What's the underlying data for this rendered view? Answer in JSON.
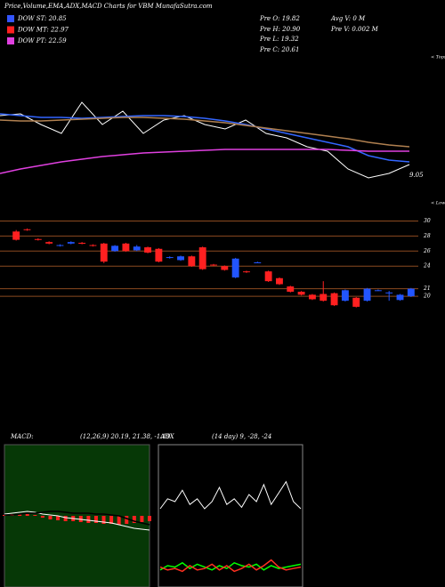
{
  "header": {
    "title": "Price,Volume,EMA,ADX,MACD Charts for VBM MunafaSutra.com",
    "legend": [
      {
        "label": "DOW ST: 20.85",
        "color": "#3355ff"
      },
      {
        "label": "DOW MT: 22.97",
        "color": "#ff2020"
      },
      {
        "label": "DOW PT: 22.59",
        "color": "#e040e0"
      }
    ],
    "stats_left": [
      "Pre O: 19.82",
      "Pre H: 20.90",
      "Pre L: 19.32",
      "Pre C: 20.61"
    ],
    "stats_right": [
      "Avg V: 0 M",
      "Pre V: 0.002 M"
    ]
  },
  "chart_data": [
    {
      "type": "line",
      "ylim": [
        0,
        100
      ],
      "annotations": {
        "last": "9.05",
        "tops": "< Tops",
        "lows": "< Lows"
      },
      "series": [
        {
          "name": null,
          "color": "#ffffff",
          "values": [
            80,
            82,
            70,
            60,
            95,
            70,
            85,
            60,
            75,
            80,
            70,
            65,
            75,
            60,
            55,
            45,
            40,
            20,
            10,
            15,
            25
          ]
        },
        {
          "name": null,
          "color": "#3366ff",
          "values": [
            82,
            80,
            78,
            78,
            77,
            78,
            79,
            80,
            80,
            79,
            77,
            74,
            70,
            65,
            60,
            55,
            50,
            45,
            35,
            30,
            28
          ]
        },
        {
          "name": null,
          "color": "#b08050",
          "values": [
            75,
            74,
            74,
            75,
            76,
            77,
            78,
            78,
            77,
            76,
            74,
            72,
            69,
            66,
            63,
            60,
            57,
            54,
            50,
            47,
            45
          ]
        },
        {
          "name": null,
          "color": "#e040e0",
          "values": [
            15,
            20,
            24,
            28,
            31,
            34,
            36,
            38,
            39,
            40,
            41,
            42,
            42,
            42,
            42,
            42,
            42,
            41,
            40,
            40,
            40
          ]
        }
      ]
    },
    {
      "type": "candlestick",
      "ylim": [
        18,
        31
      ],
      "yticks": [
        30,
        28,
        26,
        24,
        21,
        20
      ],
      "up_color": "#2255ff",
      "down_color": "#ff2020",
      "grid_color": "#8b4a20",
      "candles": [
        {
          "open": 28.6,
          "high": 28.8,
          "low": 27.4,
          "close": 27.5
        },
        {
          "open": 28.9,
          "high": 29.0,
          "low": 28.7,
          "close": 28.8
        },
        {
          "open": 27.6,
          "high": 27.7,
          "low": 27.4,
          "close": 27.5
        },
        {
          "open": 27.2,
          "high": 27.3,
          "low": 26.9,
          "close": 27.0
        },
        {
          "open": 26.7,
          "high": 26.9,
          "low": 26.6,
          "close": 26.8
        },
        {
          "open": 27.0,
          "high": 27.3,
          "low": 26.9,
          "close": 27.2
        },
        {
          "open": 27.1,
          "high": 27.2,
          "low": 26.9,
          "close": 27.0
        },
        {
          "open": 26.8,
          "high": 26.9,
          "low": 26.6,
          "close": 26.7
        },
        {
          "open": 27.0,
          "high": 27.1,
          "low": 24.4,
          "close": 24.6
        },
        {
          "open": 26.0,
          "high": 26.8,
          "low": 25.9,
          "close": 26.7
        },
        {
          "open": 27.0,
          "high": 27.1,
          "low": 25.9,
          "close": 26.0
        },
        {
          "open": 26.1,
          "high": 26.8,
          "low": 26.0,
          "close": 26.6
        },
        {
          "open": 26.5,
          "high": 26.6,
          "low": 25.7,
          "close": 25.8
        },
        {
          "open": 26.3,
          "high": 26.4,
          "low": 24.5,
          "close": 24.6
        },
        {
          "open": 25.1,
          "high": 25.3,
          "low": 25.0,
          "close": 25.2
        },
        {
          "open": 24.8,
          "high": 25.4,
          "low": 24.7,
          "close": 25.3
        },
        {
          "open": 25.3,
          "high": 25.4,
          "low": 23.9,
          "close": 24.0
        },
        {
          "open": 26.5,
          "high": 26.6,
          "low": 23.5,
          "close": 23.6
        },
        {
          "open": 24.2,
          "high": 24.3,
          "low": 24.0,
          "close": 24.1
        },
        {
          "open": 24.0,
          "high": 24.1,
          "low": 23.4,
          "close": 23.5
        },
        {
          "open": 22.5,
          "high": 25.1,
          "low": 22.4,
          "close": 25.0
        },
        {
          "open": 23.3,
          "high": 23.4,
          "low": 23.1,
          "close": 23.2
        },
        {
          "open": 24.5,
          "high": 24.6,
          "low": 24.4,
          "close": 24.5
        },
        {
          "open": 23.3,
          "high": 23.4,
          "low": 21.9,
          "close": 22.0
        },
        {
          "open": 22.4,
          "high": 22.5,
          "low": 21.5,
          "close": 21.6
        },
        {
          "open": 21.3,
          "high": 21.4,
          "low": 20.5,
          "close": 20.6
        },
        {
          "open": 20.6,
          "high": 20.7,
          "low": 20.1,
          "close": 20.2
        },
        {
          "open": 20.2,
          "high": 20.3,
          "low": 19.5,
          "close": 19.6
        },
        {
          "open": 20.3,
          "high": 22.0,
          "low": 19.3,
          "close": 19.4
        },
        {
          "open": 20.4,
          "high": 20.5,
          "low": 18.7,
          "close": 18.8
        },
        {
          "open": 19.4,
          "high": 20.9,
          "low": 19.3,
          "close": 20.8
        },
        {
          "open": 19.8,
          "high": 19.9,
          "low": 18.5,
          "close": 18.6
        },
        {
          "open": 19.4,
          "high": 21.1,
          "low": 19.3,
          "close": 21.0
        },
        {
          "open": 20.8,
          "high": 20.9,
          "low": 20.7,
          "close": 20.8
        },
        {
          "open": 20.5,
          "high": 20.7,
          "low": 19.4,
          "close": 20.5
        },
        {
          "open": 19.5,
          "high": 20.3,
          "low": 19.4,
          "close": 20.2
        },
        {
          "open": 20.0,
          "high": 21.1,
          "low": 19.9,
          "close": 21.0
        }
      ]
    },
    {
      "type": "macd",
      "title": "MACD:",
      "subtitle": "(12,26,9) 20.19, 21.38, -1.19",
      "background": "#063806",
      "ylim": [
        -4,
        4
      ],
      "histogram_color": "#ff2020",
      "histogram": [
        0.05,
        0.1,
        0.08,
        0.1,
        0.05,
        -0.1,
        -0.2,
        -0.25,
        -0.3,
        -0.3,
        -0.35,
        -0.4,
        -0.4,
        -0.45,
        -0.45,
        -0.5,
        -0.45,
        -0.4,
        -0.35,
        -0.3
      ],
      "series": [
        {
          "name": null,
          "color": "#ffffff",
          "values": [
            0.1,
            0.15,
            0.2,
            0.25,
            0.2,
            0.1,
            0.05,
            0.0,
            -0.1,
            -0.15,
            -0.2,
            -0.25,
            -0.3,
            -0.35,
            -0.4,
            -0.5,
            -0.6,
            -0.7,
            -0.75,
            -0.8
          ]
        },
        {
          "name": null,
          "color": "#000000",
          "values": [
            0.05,
            0.05,
            0.1,
            0.15,
            0.15,
            0.2,
            0.25,
            0.25,
            0.2,
            0.15,
            0.15,
            0.15,
            0.1,
            0.1,
            0.05,
            0.0,
            -0.15,
            -0.3,
            -0.4,
            -0.5
          ]
        }
      ]
    },
    {
      "type": "adx",
      "title": "ADX",
      "subtitle": "(14 day) 9, -28, -24",
      "background": "#000000",
      "ylim": [
        0,
        100
      ],
      "series": [
        {
          "name": null,
          "color": "#ffffff",
          "values": [
            55,
            62,
            60,
            68,
            58,
            62,
            55,
            60,
            70,
            58,
            62,
            56,
            65,
            60,
            72,
            58,
            66,
            74,
            60,
            55
          ]
        },
        {
          "name": null,
          "color": "#00ff00",
          "values": [
            12,
            15,
            14,
            17,
            13,
            16,
            14,
            12,
            15,
            13,
            17,
            15,
            14,
            16,
            12,
            15,
            13,
            14,
            15,
            16
          ]
        },
        {
          "name": null,
          "color": "#ff3020",
          "values": [
            14,
            12,
            13,
            11,
            15,
            12,
            13,
            16,
            12,
            15,
            11,
            13,
            16,
            12,
            15,
            19,
            14,
            12,
            13,
            14
          ]
        }
      ]
    }
  ]
}
